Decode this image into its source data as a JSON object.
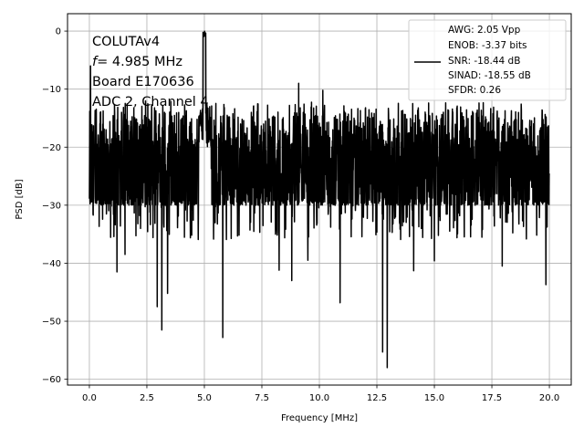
{
  "chart_data": {
    "type": "line",
    "title": "",
    "xlabel": "Frequency [MHz]",
    "ylabel": "PSD [dB]",
    "xlim": [
      -0.95,
      20.95
    ],
    "ylim": [
      -61.0,
      3.0
    ],
    "x_ticks": [
      0.0,
      2.5,
      5.0,
      7.5,
      10.0,
      12.5,
      15.0,
      17.5,
      20.0
    ],
    "x_tick_labels": [
      "0.0",
      "2.5",
      "5.0",
      "7.5",
      "10.0",
      "12.5",
      "15.0",
      "17.5",
      "20.0"
    ],
    "y_ticks": [
      0,
      -10,
      -20,
      -30,
      -40,
      -50,
      -60
    ],
    "y_tick_labels": [
      "0",
      "−10",
      "−20",
      "−30",
      "−40",
      "−50",
      "−60"
    ],
    "grid": true,
    "line_color": "#000000",
    "annotation": {
      "lines": [
        "COLUTAv4",
        "= 4.985 MHz",
        "Board E170636",
        "ADC 2, Channel 4"
      ],
      "f_symbol": "f"
    },
    "legend": {
      "placement": "top-right",
      "lines": [
        "AWG: 2.05 Vpp",
        "ENOB: -3.37 bits",
        "SNR: -18.44 dB",
        "SINAD: -18.55 dB",
        "SFDR: 0.26"
      ]
    },
    "series": [
      {
        "x": [
          0.0,
          20.0
        ],
        "noise_floor_db": -21.5,
        "noise_spread_db": [
          -30,
          -12
        ],
        "peak": {
          "x": 5.0,
          "y": 0.0
        },
        "dips": [
          {
            "x": 1.2,
            "y": -41.5
          },
          {
            "x": 1.55,
            "y": -38.5
          },
          {
            "x": 2.95,
            "y": -47.5
          },
          {
            "x": 3.15,
            "y": -51.5
          },
          {
            "x": 3.4,
            "y": -45.2
          },
          {
            "x": 5.8,
            "y": -52.8
          },
          {
            "x": 8.25,
            "y": -41.2
          },
          {
            "x": 8.8,
            "y": -43.0
          },
          {
            "x": 9.5,
            "y": -39.5
          },
          {
            "x": 10.9,
            "y": -46.8
          },
          {
            "x": 12.75,
            "y": -55.3
          },
          {
            "x": 12.95,
            "y": -58.0
          },
          {
            "x": 14.1,
            "y": -41.3
          },
          {
            "x": 15.0,
            "y": -39.6
          },
          {
            "x": 17.95,
            "y": -40.5
          },
          {
            "x": 19.85,
            "y": -43.7
          }
        ],
        "spikes": [
          {
            "x": 0.05,
            "y": -6.0
          },
          {
            "x": 9.1,
            "y": -9.0
          },
          {
            "x": 10.15,
            "y": -10.2
          }
        ]
      }
    ]
  }
}
